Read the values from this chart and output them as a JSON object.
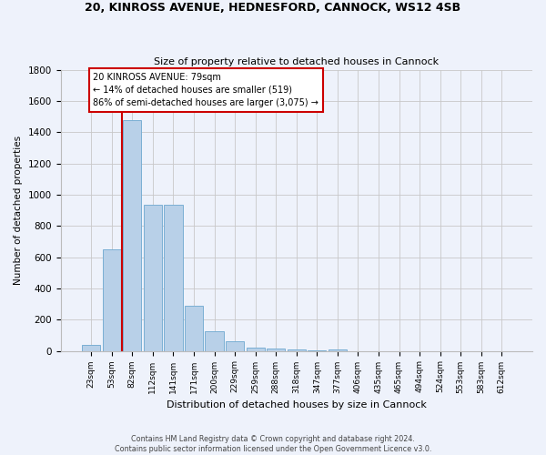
{
  "title1": "20, KINROSS AVENUE, HEDNESFORD, CANNOCK, WS12 4SB",
  "title2": "Size of property relative to detached houses in Cannock",
  "xlabel": "Distribution of detached houses by size in Cannock",
  "ylabel": "Number of detached properties",
  "categories": [
    "23sqm",
    "53sqm",
    "82sqm",
    "112sqm",
    "141sqm",
    "171sqm",
    "200sqm",
    "229sqm",
    "259sqm",
    "288sqm",
    "318sqm",
    "347sqm",
    "377sqm",
    "406sqm",
    "435sqm",
    "465sqm",
    "494sqm",
    "524sqm",
    "553sqm",
    "583sqm",
    "612sqm"
  ],
  "values": [
    38,
    650,
    1475,
    935,
    935,
    290,
    125,
    62,
    22,
    15,
    8,
    5,
    8,
    0,
    0,
    0,
    0,
    0,
    0,
    0,
    0
  ],
  "bar_color": "#b8d0e8",
  "bar_edge_color": "#7aafd4",
  "annotation_line1": "20 KINROSS AVENUE: 79sqm",
  "annotation_line2": "← 14% of detached houses are smaller (519)",
  "annotation_line3": "86% of semi-detached houses are larger (3,075) →",
  "annotation_box_color": "#ffffff",
  "annotation_box_edge": "#cc0000",
  "marker_line_color": "#cc0000",
  "ylim": [
    0,
    1800
  ],
  "yticks": [
    0,
    200,
    400,
    600,
    800,
    1000,
    1200,
    1400,
    1600,
    1800
  ],
  "footer1": "Contains HM Land Registry data © Crown copyright and database right 2024.",
  "footer2": "Contains public sector information licensed under the Open Government Licence v3.0.",
  "bg_color": "#eef2fb",
  "plot_bg_color": "#eef2fb"
}
